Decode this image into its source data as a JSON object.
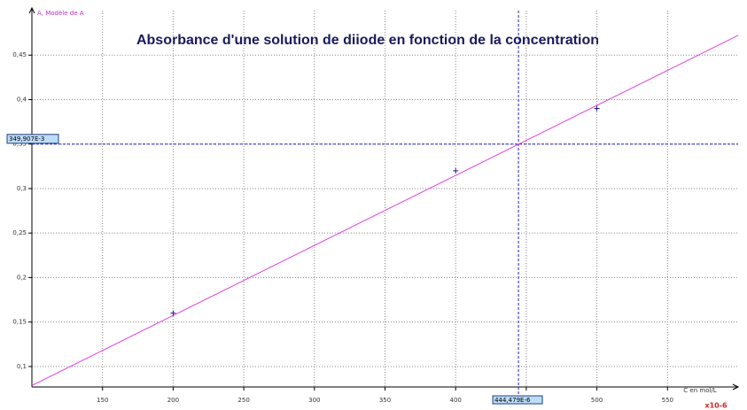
{
  "chart_data": {
    "type": "scatter",
    "title": "Absorbance d'une solution de diiode en fonction de la concentration",
    "y_label": "A, Modèle de A",
    "x_label": "C en mol/L",
    "x_multiplier": "x10-6",
    "series": [
      {
        "name": "A",
        "color": "#1a1a8c",
        "x": [
          200,
          400,
          500
        ],
        "values": [
          0.16,
          0.32,
          0.39
        ]
      }
    ],
    "model": {
      "name": "Modèle de A",
      "color": "#e040e0",
      "x": [
        100,
        600
      ],
      "values": [
        0.0787,
        0.4722
      ]
    },
    "cursor": {
      "x": 444.479,
      "y": 0.349907,
      "x_label": "444,479E-6",
      "y_label": "349,907E-3",
      "color": "#2020c0"
    },
    "xlim": [
      100,
      600
    ],
    "ylim": [
      0.077,
      0.5
    ],
    "xticks": [
      150,
      200,
      250,
      300,
      350,
      400,
      450,
      500,
      550
    ],
    "yticks": [
      {
        "value": 0.1,
        "label": "0,1"
      },
      {
        "value": 0.15,
        "label": "0,15"
      },
      {
        "value": 0.2,
        "label": "0,2"
      },
      {
        "value": 0.25,
        "label": "0,25"
      },
      {
        "value": 0.3,
        "label": "0,3"
      },
      {
        "value": 0.35,
        "label": "0,35"
      },
      {
        "value": 0.4,
        "label": "0,4"
      },
      {
        "value": 0.45,
        "label": "0,45"
      }
    ],
    "grid": true
  }
}
